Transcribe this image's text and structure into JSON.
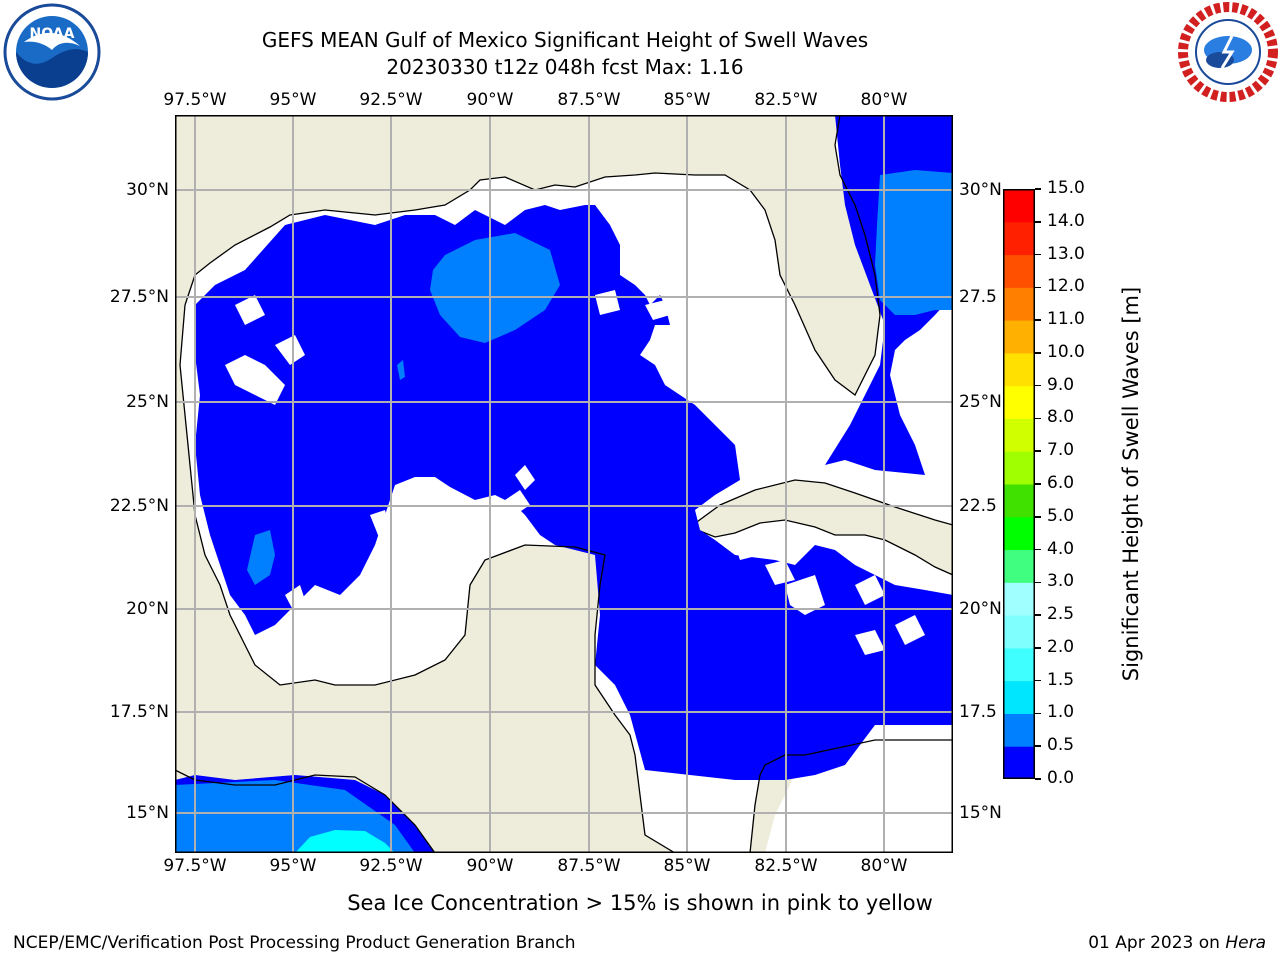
{
  "title": {
    "line1": "GEFS MEAN Gulf of Mexico Significant Height of Swell Waves",
    "line2": "20230330 t12z 048h fcst   Max: 1.16"
  },
  "logos": {
    "left": "noaa-logo",
    "right": "nws-logo"
  },
  "longitude_ticks": [
    "97.5°W",
    "95°W",
    "92.5°W",
    "90°W",
    "87.5°W",
    "85°W",
    "82.5°W",
    "80°W"
  ],
  "latitude_ticks_left": [
    "30°N",
    "27.5°N",
    "25°N",
    "22.5°N",
    "20°N",
    "17.5°N",
    "15°N"
  ],
  "latitude_ticks_right": [
    "30°N",
    "27.5",
    "25°N",
    "22.5",
    "20°N",
    "17.5",
    "15°N"
  ],
  "colorbar": {
    "label": "Significant Height of Swell Waves [m]",
    "ticks": [
      "0.0",
      "0.5",
      "1.0",
      "1.5",
      "2.0",
      "2.5",
      "3.0",
      "4.0",
      "5.0",
      "6.0",
      "7.0",
      "8.0",
      "9.0",
      "10.0",
      "11.0",
      "12.0",
      "13.0",
      "14.0",
      "15.0"
    ],
    "colors": [
      "#0000ff",
      "#0080ff",
      "#00e6ff",
      "#40ffff",
      "#80ffff",
      "#a0ffff",
      "#40ff80",
      "#00ff00",
      "#40e000",
      "#a0ff00",
      "#d0ff00",
      "#ffff00",
      "#ffe000",
      "#ffb000",
      "#ff8000",
      "#ff5000",
      "#ff2000",
      "#ff0000"
    ]
  },
  "map_colors": {
    "land": "#eeeddc",
    "no_data": "#ffffff",
    "swell_0_0_5": "#0000ff",
    "swell_0_5_1_0": "#0080ff",
    "swell_1_0_1_5": "#00ffff",
    "grid": "#b0b0b0"
  },
  "caption": "Sea Ice Concentration > 15% is shown in pink to yellow",
  "footer": {
    "left": "NCEP/EMC/Verification Post Processing Product Generation Branch",
    "right_date": "01 Apr 2023 on ",
    "right_host": "Hera"
  }
}
